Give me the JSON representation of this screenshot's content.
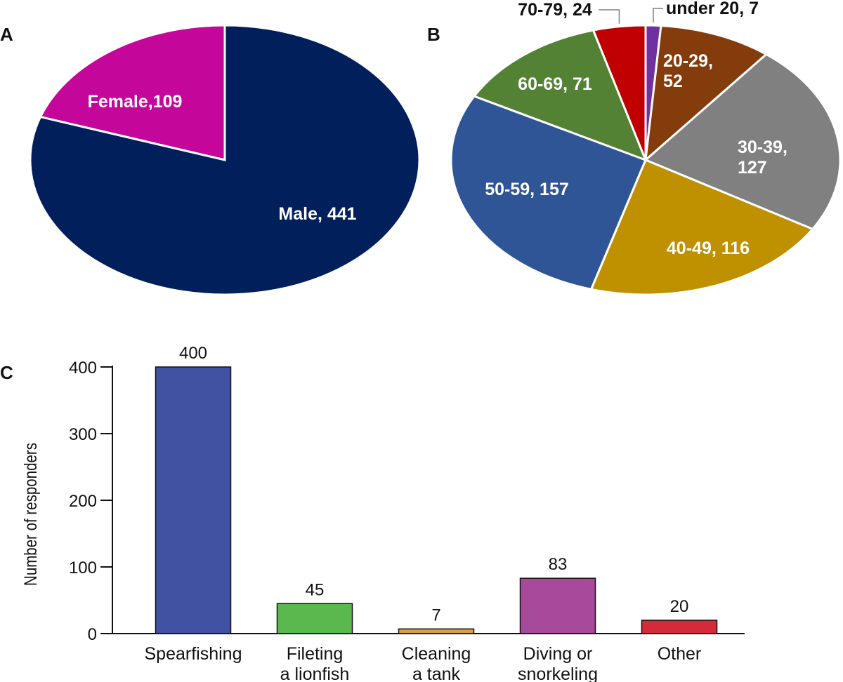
{
  "panels": {
    "a": "A",
    "b": "B",
    "c": "C"
  },
  "chart_data": [
    {
      "type": "pie",
      "panel": "A",
      "labels": [
        "Female",
        "Male"
      ],
      "values": [
        109,
        441
      ],
      "slice_labels": [
        "Female,109",
        "Male, 441"
      ],
      "colors": [
        "#c4069a",
        "#001f5b"
      ]
    },
    {
      "type": "pie",
      "panel": "B",
      "labels": [
        "under 20",
        "20-29",
        "30-39",
        "40-49",
        "50-59",
        "60-69",
        "70-79"
      ],
      "values": [
        7,
        52,
        127,
        116,
        157,
        71,
        24
      ],
      "slice_labels": [
        [
          "under 20, 7"
        ],
        [
          "20-29,",
          "52"
        ],
        [
          "30-39,",
          "127"
        ],
        [
          "40-49, 116"
        ],
        [
          "50-59, 157"
        ],
        [
          "60-69, 71"
        ],
        [
          "70-79, 24"
        ]
      ],
      "colors": [
        "#7030a0",
        "#843c0c",
        "#808080",
        "#bf9000",
        "#2f5597",
        "#548235",
        "#c00000"
      ]
    },
    {
      "type": "bar",
      "panel": "C",
      "categories": [
        [
          "Spearfishing"
        ],
        [
          "Fileting",
          "a lionfish"
        ],
        [
          "Cleaning",
          "a tank"
        ],
        [
          "Diving or",
          "snorkeling"
        ],
        [
          "Other"
        ]
      ],
      "values": [
        400,
        45,
        7,
        83,
        20
      ],
      "colors": [
        "#4152a3",
        "#5ab84e",
        "#d9a03d",
        "#a74a9c",
        "#d42a3a"
      ],
      "ylabel": "Number of responders",
      "ylim": [
        0,
        400
      ],
      "yticks": [
        0,
        100,
        200,
        300,
        400
      ],
      "grid": false
    }
  ]
}
